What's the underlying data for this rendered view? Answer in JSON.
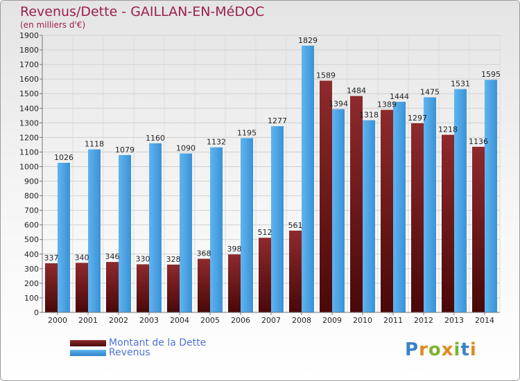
{
  "title": "Revenus/Dette - GAILLAN-EN-MéDOC",
  "subtitle": "(en milliers d'€)",
  "brand": "Proxiti",
  "chart_data": {
    "type": "bar",
    "categories": [
      "2000",
      "2001",
      "2002",
      "2003",
      "2004",
      "2005",
      "2006",
      "2007",
      "2008",
      "2009",
      "2010",
      "2011",
      "2012",
      "2013",
      "2014"
    ],
    "series": [
      {
        "name": "Montant de la Dette",
        "color": "#7c2325",
        "values": [
          337,
          340,
          346,
          330,
          328,
          368,
          398,
          512,
          561,
          1589,
          1484,
          1389,
          1297,
          1218,
          1136
        ]
      },
      {
        "name": "Revenus",
        "color": "#45a0e8",
        "values": [
          1026,
          1118,
          1079,
          1160,
          1090,
          1132,
          1195,
          1277,
          1829,
          1394,
          1318,
          1444,
          1475,
          1531,
          1595
        ]
      }
    ],
    "ylim": [
      0,
      1900
    ],
    "ytick_step": 100,
    "grid": true,
    "legend_position": "bottom-left"
  }
}
